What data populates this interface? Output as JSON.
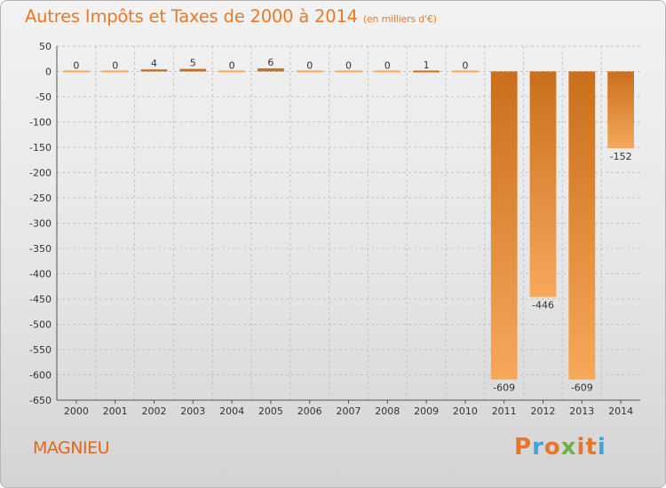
{
  "header": {
    "title": "Autres Impôts et Taxes de 2000 à 2014",
    "unit": "(en milliers d'€)"
  },
  "footer": {
    "town": "MAGNIEU",
    "logo": "Proxiti",
    "logo_colors": [
      "#e8762a",
      "#39a7d9",
      "#e8762a",
      "#6db33f",
      "#e8762a",
      "#e8762a",
      "#39a7d9"
    ]
  },
  "colors": {
    "title": "#e87a28",
    "bar_dark": "#c96f1c",
    "bar_light": "#f6a85a"
  },
  "chart_data": {
    "type": "bar",
    "title": "Autres Impôts et Taxes de 2000 à 2014",
    "subtitle": "(en milliers d'€)",
    "categories": [
      "2000",
      "2001",
      "2002",
      "2003",
      "2004",
      "2005",
      "2006",
      "2007",
      "2008",
      "2009",
      "2010",
      "2011",
      "2012",
      "2013",
      "2014"
    ],
    "values": [
      0,
      0,
      4,
      5,
      0,
      6,
      0,
      0,
      0,
      1,
      0,
      -609,
      -446,
      -609,
      -152
    ],
    "ylim": [
      -650,
      50
    ],
    "yticks": [
      50,
      0,
      -50,
      -100,
      -150,
      -200,
      -250,
      -300,
      -350,
      -400,
      -450,
      -500,
      -550,
      -600,
      -650
    ],
    "grid": true,
    "legend": "none"
  }
}
